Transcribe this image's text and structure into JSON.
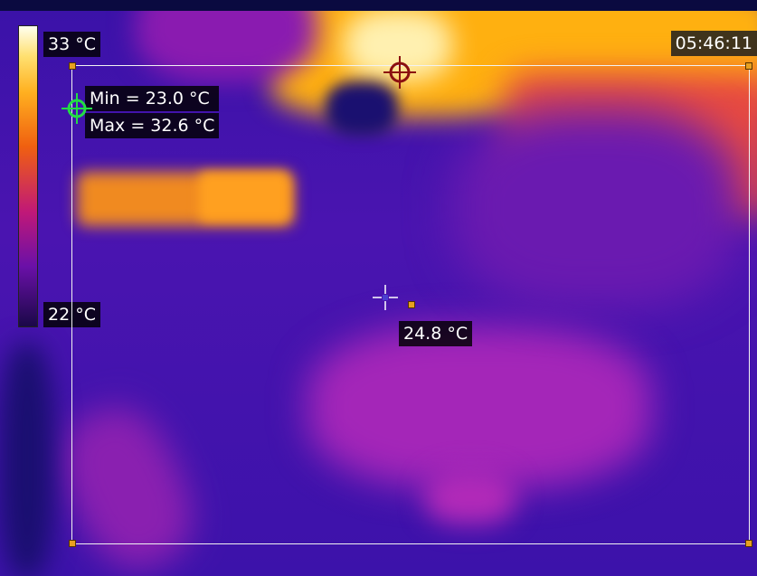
{
  "colorbar": {
    "max_label": "33 °C",
    "min_label": "22 °C"
  },
  "time": "05:46:11",
  "roi_stats": {
    "min": "Min = 23.0 °C",
    "max": "Max = 32.6 °C"
  },
  "spot": {
    "value": "24.8 °C"
  },
  "colors": {
    "roi_border": "#f2f2f2",
    "max_marker": "#8b1010",
    "min_marker": "#22dd44",
    "spot_marker": "#e8a020"
  }
}
